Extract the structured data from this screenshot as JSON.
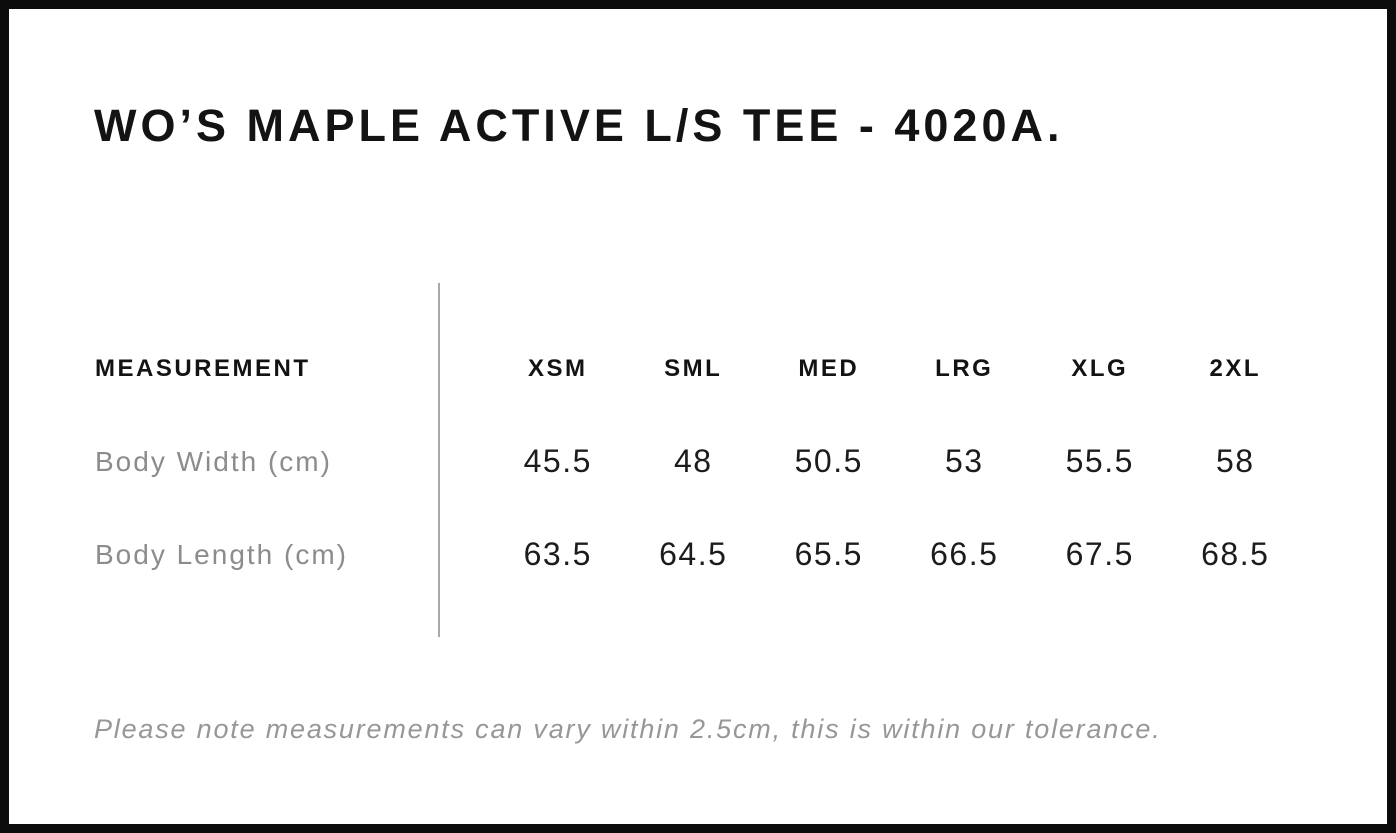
{
  "title": "WO’S MAPLE ACTIVE L/S TEE - 4020A.",
  "note": "Please note measurements can vary within 2.5cm, this is within our tolerance.",
  "table": {
    "label_header": "MEASUREMENT",
    "size_headers": [
      "XSM",
      "SML",
      "MED",
      "LRG",
      "XLG",
      "2XL"
    ],
    "rows": [
      {
        "label": "Body Width (cm)",
        "values": [
          "45.5",
          "48",
          "50.5",
          "53",
          "55.5",
          "58"
        ]
      },
      {
        "label": "Body Length (cm)",
        "values": [
          "63.5",
          "64.5",
          "65.5",
          "66.5",
          "67.5",
          "68.5"
        ]
      }
    ]
  },
  "chart_data": {
    "type": "table",
    "title": "WO’S MAPLE ACTIVE L/S TEE - 4020A.",
    "columns": [
      "MEASUREMENT",
      "XSM",
      "SML",
      "MED",
      "LRG",
      "XLG",
      "2XL"
    ],
    "rows": [
      [
        "Body Width (cm)",
        45.5,
        48,
        50.5,
        53,
        55.5,
        58
      ],
      [
        "Body Length (cm)",
        63.5,
        64.5,
        65.5,
        66.5,
        67.5,
        68.5
      ]
    ],
    "footnote": "Please note measurements can vary within 2.5cm, this is within our tolerance."
  },
  "colors": {
    "background": "#ffffff",
    "frame": "#0c0c0c",
    "heading_text": "#131313",
    "value_text": "#1c1c1c",
    "muted_text": "#8c8c8c",
    "note_text": "#979797",
    "divider": "#a8a8a8"
  }
}
